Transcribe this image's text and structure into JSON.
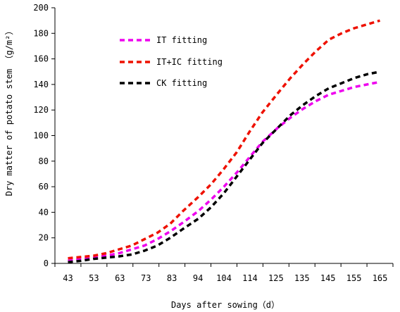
{
  "chart_data": {
    "type": "line",
    "xlabel": "Days after sowing（d）",
    "ylabel": "Dry matter of potato stem （g/m²）",
    "ylim": [
      0,
      200
    ],
    "yticks": [
      0,
      20,
      40,
      60,
      80,
      100,
      120,
      140,
      160,
      180,
      200
    ],
    "categories": [
      "43",
      "53",
      "63",
      "73",
      "83",
      "94",
      "104",
      "114",
      "125",
      "135",
      "145",
      "155",
      "165"
    ],
    "grid": false,
    "legend_position": "top-left",
    "series": [
      {
        "name": "IT fitting",
        "color": "#ee00ee",
        "x": [
          43,
          48,
          53,
          58,
          63,
          68,
          73,
          78,
          83,
          88,
          94,
          99,
          104,
          109,
          114,
          119,
          125,
          130,
          135,
          140,
          145,
          150,
          155,
          160,
          165
        ],
        "y": [
          2,
          3.5,
          4.5,
          6,
          8,
          11,
          14,
          19,
          25,
          32,
          41,
          50,
          60,
          71,
          83,
          95,
          106,
          114,
          121,
          127,
          132,
          135,
          138,
          140,
          142
        ]
      },
      {
        "name": "IT+IC fitting",
        "color": "#ee1100",
        "x": [
          43,
          48,
          53,
          58,
          63,
          68,
          73,
          78,
          83,
          88,
          94,
          99,
          104,
          109,
          114,
          119,
          125,
          130,
          135,
          140,
          145,
          150,
          155,
          160,
          165
        ],
        "y": [
          4,
          5,
          6,
          8,
          11,
          14,
          19,
          24,
          31,
          41,
          52,
          62,
          74,
          87,
          103,
          118,
          133,
          145,
          156,
          166,
          175,
          180,
          184,
          187,
          190
        ]
      },
      {
        "name": "CK fitting",
        "color": "#000000",
        "x": [
          43,
          48,
          53,
          58,
          63,
          68,
          73,
          78,
          83,
          88,
          94,
          99,
          104,
          109,
          114,
          119,
          125,
          130,
          135,
          140,
          145,
          150,
          155,
          160,
          165
        ],
        "y": [
          1,
          2,
          3.5,
          4.5,
          5.5,
          7,
          10,
          14,
          20,
          27,
          35,
          44,
          55,
          68,
          81,
          94,
          106,
          116,
          124,
          131,
          137,
          141,
          145,
          148,
          150
        ]
      }
    ]
  }
}
